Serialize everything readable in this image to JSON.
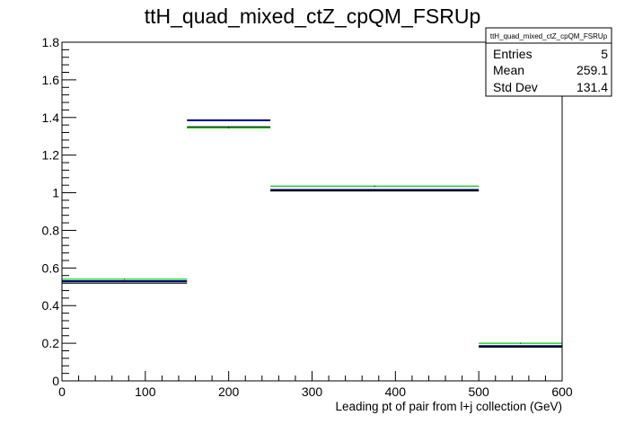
{
  "chart_data": {
    "type": "histogram",
    "title": "ttH_quad_mixed_ctZ_cpQM_FSRUp",
    "xlabel": "Leading pt of pair from l+j collection (GeV)",
    "ylabel": "",
    "xlim": [
      0,
      600
    ],
    "ylim": [
      0,
      1.8
    ],
    "x_ticks": [
      "0",
      "100",
      "200",
      "300",
      "400",
      "500",
      "600"
    ],
    "y_ticks": [
      "0",
      "0.2",
      "0.4",
      "0.6",
      "0.8",
      "1",
      "1.2",
      "1.4",
      "1.6",
      "1.8"
    ],
    "bin_edges": [
      0,
      150,
      250,
      500,
      600
    ],
    "series": [
      {
        "color": "#000080",
        "values": [
          0.53,
          1.385,
          1.015,
          0.185
        ]
      },
      {
        "color": "#000000",
        "values": [
          0.52,
          1.35,
          1.01,
          0.18
        ]
      },
      {
        "color": "#00cc00",
        "values": [
          0.54,
          1.345,
          1.035,
          0.2
        ]
      }
    ],
    "grid": false,
    "stats_box": {
      "name": "ttH_quad_mixed_ctZ_cpQM_FSRUp",
      "rows": [
        {
          "label": "Entries",
          "value": "5"
        },
        {
          "label": "Mean",
          "value": "259.1"
        },
        {
          "label": "Std Dev",
          "value": "131.4"
        }
      ]
    }
  }
}
